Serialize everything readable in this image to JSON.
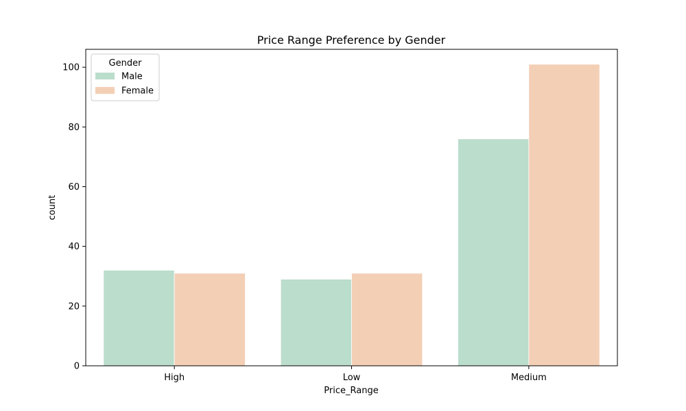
{
  "chart_data": {
    "type": "bar",
    "title": "Price Range Preference by Gender",
    "xlabel": "Price_Range",
    "ylabel": "count",
    "categories": [
      "High",
      "Low",
      "Medium"
    ],
    "series": [
      {
        "name": "Male",
        "values": [
          32,
          29,
          76
        ],
        "color": "#bbddcc"
      },
      {
        "name": "Female",
        "values": [
          31,
          31,
          101
        ],
        "color": "#f3cfb5"
      }
    ],
    "ylim": [
      0,
      106
    ],
    "yticks": [
      0,
      20,
      40,
      60,
      80,
      100
    ],
    "legend": {
      "title": "Gender",
      "placement": "top-left"
    },
    "grid": false
  }
}
